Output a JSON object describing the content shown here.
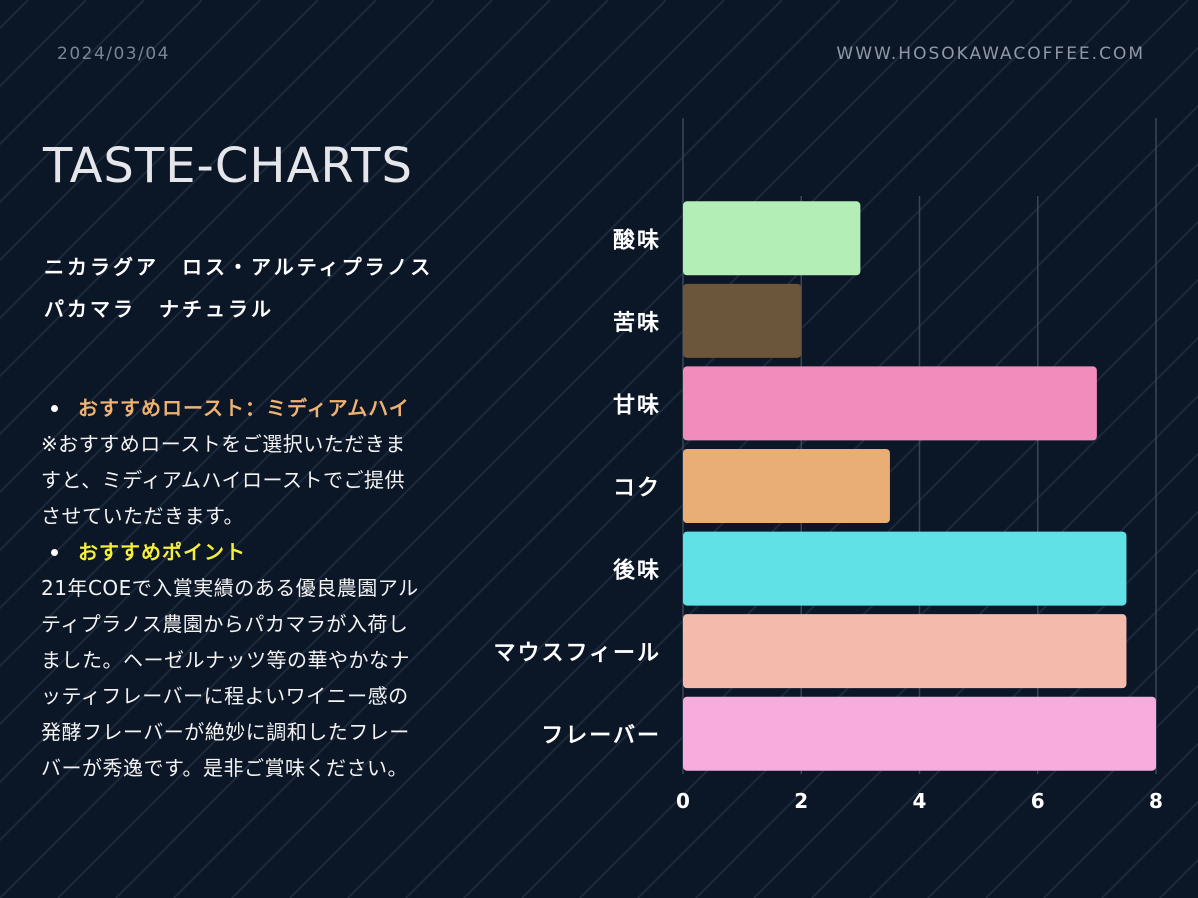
{
  "header": {
    "date": "2024/03/04",
    "website": "WWW.HOSOKAWACOFFEE.COM"
  },
  "title": "TASTE-CHARTS",
  "product": {
    "line1": "ニカラグア　ロス・アルティプラノス",
    "line2": "パカマラ　ナチュラル"
  },
  "sections": [
    {
      "heading": "おすすめロースト：ミディアムハイ",
      "lines": [
        "※おすすめローストをご選択いただきま",
        "すと、ミディアムハイローストでご提供",
        "させていただきます。"
      ]
    },
    {
      "heading": "おすすめポイント",
      "lines": [
        "21年COEで入賞実績のある優良農園アル",
        "ティプラノス農園からパカマラが入荷し",
        "ました。ヘーゼルナッツ等の華やかなナ",
        "ッティフレーバーに程よいワイニー感の",
        "発酵フレーバーが絶妙に調和したフレー",
        "バーが秀逸です。是非ご賞味ください。"
      ]
    }
  ],
  "colors": {
    "background": "#0b1627",
    "roast_heading": "#efb170",
    "point_heading": "#f5ef3a"
  },
  "chart_data": {
    "type": "bar",
    "orientation": "horizontal",
    "categories": [
      "酸味",
      "苦味",
      "甘味",
      "コク",
      "後味",
      "マウスフィール",
      "フレーバー"
    ],
    "values": [
      3,
      2,
      7,
      3.5,
      7.5,
      7.5,
      8
    ],
    "colors": [
      "#b2eeb5",
      "#6b553b",
      "#f28cbd",
      "#e8ae75",
      "#5fe1e6",
      "#f4bbac",
      "#f8acde"
    ],
    "xlim": [
      0,
      8
    ],
    "xticks": [
      0,
      2,
      4,
      6,
      8
    ],
    "grid": true
  }
}
